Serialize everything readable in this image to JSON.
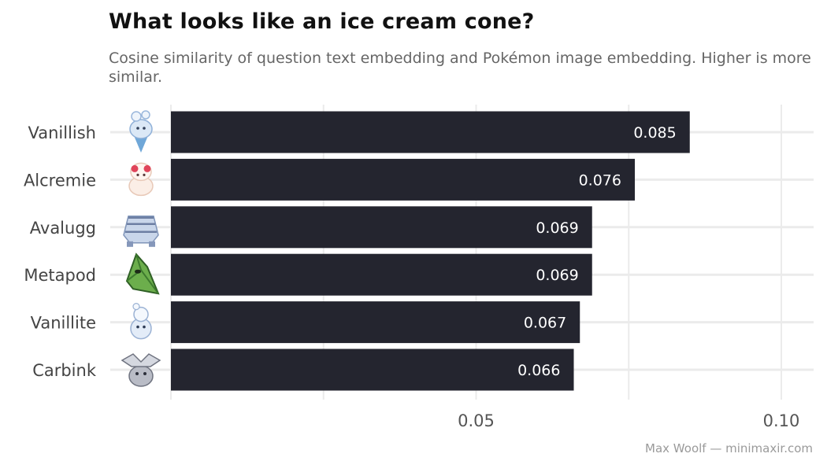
{
  "title": "What looks like an ice cream cone?",
  "subtitle": "Cosine similarity of question text embedding and Pokémon image embedding. Higher is more similar.",
  "caption": "Max Woolf — minimaxir.com",
  "chart_data": {
    "type": "bar",
    "orientation": "horizontal",
    "title": "What looks like an ice cream cone?",
    "subtitle": "Cosine similarity of question text embedding and Pokémon image embedding. Higher is more similar.",
    "xlabel": "",
    "ylabel": "",
    "categories": [
      "Vanillish",
      "Alcremie",
      "Avalugg",
      "Metapod",
      "Vanillite",
      "Carbink"
    ],
    "values": [
      0.085,
      0.076,
      0.069,
      0.069,
      0.067,
      0.066
    ],
    "value_labels": [
      "0.085",
      "0.076",
      "0.069",
      "0.069",
      "0.067",
      "0.066"
    ],
    "icons": [
      "vanillish-icon",
      "alcremie-icon",
      "avalugg-icon",
      "metapod-icon",
      "vanillite-icon",
      "carbink-icon"
    ],
    "xlim": [
      0,
      0.1
    ],
    "x_ticks": [
      0.05,
      0.1
    ],
    "x_tick_labels": [
      "0.05",
      "0.10"
    ],
    "grid": true,
    "bar_color": "#24252f",
    "label_color": "#ffffff"
  }
}
